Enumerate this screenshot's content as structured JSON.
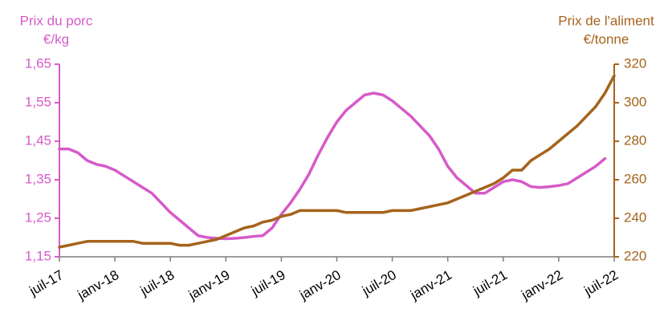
{
  "chart_data": {
    "type": "line",
    "y_label": [
      "Prix du porc",
      "€/kg"
    ],
    "y2_label": [
      "Prix de l'aliment",
      "€/tonne"
    ],
    "categories": [
      "juil-17",
      null,
      null,
      null,
      null,
      null,
      "janv-18",
      null,
      null,
      null,
      null,
      null,
      "juil-18",
      null,
      null,
      null,
      null,
      null,
      "janv-19",
      null,
      null,
      null,
      null,
      null,
      "juil-19",
      null,
      null,
      null,
      null,
      null,
      "janv-20",
      null,
      null,
      null,
      null,
      null,
      "juil-20",
      null,
      null,
      null,
      null,
      null,
      "janv-21",
      null,
      null,
      null,
      null,
      null,
      "juil-21",
      null,
      null,
      null,
      null,
      null,
      "janv-22",
      null,
      null,
      null,
      null,
      null,
      "juil-22"
    ],
    "series": [
      {
        "name": "Prix du porc",
        "color": "#d65ac9",
        "axis": "y",
        "values": [
          1.43,
          1.43,
          1.42,
          1.4,
          1.39,
          1.385,
          1.375,
          1.36,
          1.345,
          1.33,
          1.315,
          1.29,
          1.265,
          1.245,
          1.225,
          1.205,
          1.2,
          1.198,
          1.197,
          1.198,
          1.2,
          1.203,
          1.205,
          1.225,
          1.26,
          1.29,
          1.325,
          1.365,
          1.415,
          1.46,
          1.5,
          1.53,
          1.55,
          1.57,
          1.575,
          1.57,
          1.555,
          1.535,
          1.515,
          1.49,
          1.465,
          1.43,
          1.385,
          1.355,
          1.335,
          1.315,
          1.315,
          1.33,
          1.345,
          1.35,
          1.345,
          1.332,
          1.33,
          1.332,
          1.335,
          1.34,
          1.355,
          1.37,
          1.385,
          1.405,
          null
        ]
      },
      {
        "name": "Prix de l'aliment",
        "color": "#a5631c",
        "axis": "y2",
        "values": [
          225,
          226,
          227,
          228,
          228,
          228,
          228,
          228,
          228,
          227,
          227,
          227,
          227,
          226,
          226,
          227,
          228,
          229,
          231,
          233,
          235,
          236,
          238,
          239,
          241,
          242,
          244,
          244,
          244,
          244,
          244,
          243,
          243,
          243,
          243,
          243,
          244,
          244,
          244,
          245,
          246,
          247,
          248,
          250,
          252,
          254,
          256,
          258,
          261,
          265,
          265,
          270,
          273,
          276,
          280,
          284,
          288,
          293,
          298,
          305,
          314
        ]
      }
    ],
    "ylim": [
      1.15,
      1.65
    ],
    "yticks": [
      {
        "value": 1.15,
        "label": "1,15"
      },
      {
        "value": 1.25,
        "label": "1,25"
      },
      {
        "value": 1.35,
        "label": "1,35"
      },
      {
        "value": 1.45,
        "label": "1,45"
      },
      {
        "value": 1.55,
        "label": "1,55"
      },
      {
        "value": 1.65,
        "label": "1,65"
      }
    ],
    "y2lim": [
      220,
      320
    ],
    "y2ticks": [
      220,
      240,
      260,
      280,
      300,
      320
    ]
  }
}
